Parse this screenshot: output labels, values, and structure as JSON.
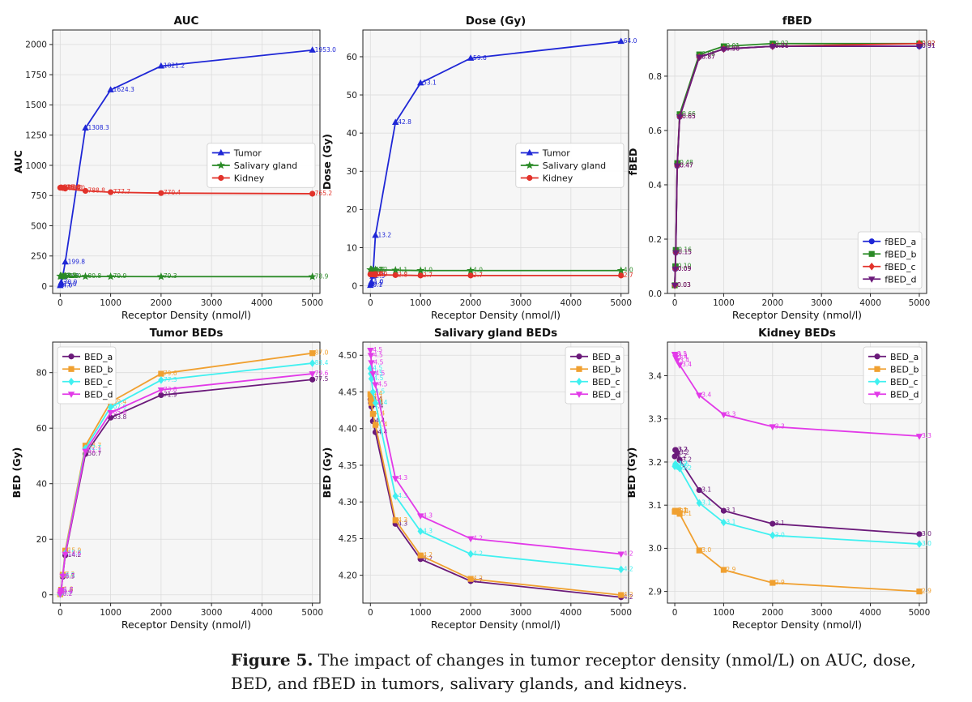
{
  "caption": {
    "label": "Figure 5.",
    "text": "The impact of changes in tumor receptor density (nmol/L) on AUC, dose, BED, and fBED in tumors, salivary glands, and kidneys."
  },
  "chart_data": [
    {
      "type": "line",
      "title": "AUC",
      "xlabel": "Receptor Density (nmol/l)",
      "ylabel": "AUC",
      "x": [
        0,
        10,
        20,
        50,
        100,
        500,
        1000,
        2000,
        5000
      ],
      "xlim": [
        -150,
        5150
      ],
      "ylim": [
        -60,
        2120
      ],
      "xticks": [
        0,
        1000,
        2000,
        3000,
        4000,
        5000
      ],
      "yticks": [
        0,
        250,
        500,
        750,
        1000,
        1250,
        1500,
        1750,
        2000
      ],
      "legend": "center-right",
      "series": [
        {
          "name": "Tumor",
          "color": "#1f27d6",
          "marker": "triangle-up",
          "values": [
            4.0,
            15.0,
            30.0,
            80.0,
            199.8,
            1308.3,
            1624.3,
            1821.2,
            1953.0
          ],
          "labels": [
            "4.0",
            "15.0",
            "30.0",
            "80.0",
            "199.8",
            "1308.3",
            "1624.3",
            "1821.2",
            "1953.0"
          ]
        },
        {
          "name": "Salivary gland",
          "color": "#2a8a26",
          "marker": "star",
          "values": [
            83.5,
            83.2,
            83.0,
            82.5,
            82.0,
            80.8,
            79.9,
            79.3,
            78.9
          ],
          "labels": [
            "83.5",
            "83.2",
            "83.0",
            "82.5",
            "82.0",
            "80.8",
            "79.9",
            "79.3",
            "78.9"
          ]
        },
        {
          "name": "Kidney",
          "color": "#e2322a",
          "marker": "circle",
          "values": [
            815.0,
            816.0,
            817.0,
            813.0,
            808.0,
            788.8,
            777.7,
            770.4,
            765.2
          ],
          "labels": [
            "815.0",
            "816.0",
            "817.0",
            "813.0",
            "808.0",
            "788.8",
            "777.7",
            "770.4",
            "765.2"
          ]
        }
      ]
    },
    {
      "type": "line",
      "title": "Dose (Gy)",
      "xlabel": "Receptor Density (nmol/l)",
      "ylabel": "Dose (Gy)",
      "x": [
        0,
        10,
        20,
        50,
        100,
        500,
        1000,
        2000,
        5000
      ],
      "xlim": [
        -150,
        5150
      ],
      "ylim": [
        -2,
        67
      ],
      "xticks": [
        0,
        1000,
        2000,
        3000,
        4000,
        5000
      ],
      "yticks": [
        0,
        10,
        20,
        30,
        40,
        50,
        60
      ],
      "legend": "center-right",
      "series": [
        {
          "name": "Tumor",
          "color": "#1f27d6",
          "marker": "triangle-up",
          "values": [
            0.1,
            0.5,
            1.0,
            2.5,
            13.2,
            42.8,
            53.1,
            59.6,
            64.0
          ],
          "labels": [
            "0.1",
            "0.5",
            "1.0",
            "2.5",
            "13.2",
            "42.8",
            "53.1",
            "59.6",
            "64.0"
          ]
        },
        {
          "name": "Salivary gland",
          "color": "#2a8a26",
          "marker": "star",
          "values": [
            4.2,
            4.2,
            4.2,
            4.2,
            4.2,
            4.1,
            4.0,
            4.0,
            4.0
          ],
          "labels": [
            "4.2",
            "4.2",
            "4.2",
            "4.2",
            "4.2",
            "4.1",
            "4.0",
            "4.0",
            "4.0"
          ]
        },
        {
          "name": "Kidney",
          "color": "#e2322a",
          "marker": "circle",
          "values": [
            3.0,
            3.0,
            3.0,
            3.0,
            2.9,
            2.8,
            2.7,
            2.7,
            2.7
          ],
          "labels": [
            "3.0",
            "3.0",
            "3.0",
            "3.0",
            "2.9",
            "2.8",
            "2.7",
            "2.7",
            "2.7"
          ]
        }
      ]
    },
    {
      "type": "line",
      "title": "fBED",
      "xlabel": "Receptor Density (nmol/l)",
      "ylabel": "fBED",
      "x": [
        0,
        10,
        20,
        50,
        100,
        500,
        1000,
        2000,
        5000
      ],
      "xlim": [
        -150,
        5150
      ],
      "ylim": [
        0,
        0.97
      ],
      "xticks": [
        0,
        1000,
        2000,
        3000,
        4000,
        5000
      ],
      "yticks": [
        0.0,
        0.2,
        0.4,
        0.6,
        0.8
      ],
      "legend": "bottom-right",
      "series": [
        {
          "name": "fBED_a",
          "color": "#1f27d6",
          "marker": "circle",
          "values": [
            0.03,
            0.09,
            0.15,
            0.47,
            0.65,
            0.87,
            0.9,
            0.91,
            0.91
          ],
          "labels": [
            "0.03",
            "0.09",
            "0.15",
            "0.47",
            "0.65",
            "0.87",
            "0.90",
            "0.91",
            "0.91"
          ]
        },
        {
          "name": "fBED_b",
          "color": "#2a8a26",
          "marker": "square",
          "values": [
            0.03,
            0.1,
            0.16,
            0.48,
            0.66,
            0.88,
            0.91,
            0.92,
            0.92
          ],
          "labels": [
            "0.03",
            "0.10",
            "0.16",
            "0.48",
            "0.66",
            "0.88",
            "0.91",
            "0.92",
            "0.92"
          ]
        },
        {
          "name": "fBED_c",
          "color": "#e2322a",
          "marker": "diamond",
          "values": [
            0.03,
            0.09,
            0.15,
            0.47,
            0.65,
            0.87,
            0.9,
            0.91,
            0.92
          ],
          "labels": [
            "0.03",
            "0.09",
            "0.15",
            "0.47",
            "0.65",
            "0.87",
            "0.90",
            "0.91",
            "0.92"
          ]
        },
        {
          "name": "fBED_d",
          "color": "#6b1a7a",
          "marker": "triangle-down",
          "values": [
            0.03,
            0.09,
            0.15,
            0.47,
            0.65,
            0.87,
            0.9,
            0.91,
            0.91
          ],
          "labels": [
            "0.03",
            "0.09",
            "0.15",
            "0.47",
            "0.65",
            "0.87",
            "0.90",
            "0.91",
            "0.91"
          ]
        }
      ]
    },
    {
      "type": "line",
      "title": "Tumor BEDs",
      "xlabel": "Receptor Density (nmol/l)",
      "ylabel": "BED (Gy)",
      "x": [
        0,
        10,
        20,
        50,
        100,
        500,
        1000,
        2000,
        5000
      ],
      "xlim": [
        -150,
        5150
      ],
      "ylim": [
        -3,
        91
      ],
      "xticks": [
        0,
        1000,
        2000,
        3000,
        4000,
        5000
      ],
      "yticks": [
        0,
        20,
        40,
        60,
        80
      ],
      "legend": "top-left",
      "series": [
        {
          "name": "BED_a",
          "color": "#6b1a7a",
          "marker": "circle",
          "values": [
            0.2,
            0.9,
            1.6,
            6.5,
            14.2,
            50.7,
            63.8,
            71.9,
            77.5
          ],
          "labels": [
            "0.2",
            "0.9",
            "1.6",
            "6.5",
            "14.2",
            "50.7",
            "63.8",
            "71.9",
            "77.5"
          ]
        },
        {
          "name": "BED_b",
          "color": "#f0a030",
          "marker": "square",
          "values": [
            0.2,
            1.0,
            1.8,
            7.2,
            15.9,
            53.7,
            69.4,
            79.6,
            87.0
          ],
          "labels": [
            "0.2",
            "1.0",
            "1.8",
            "7.2",
            "15.9",
            "53.7",
            "69.4",
            "79.6",
            "87.0"
          ]
        },
        {
          "name": "BED_c",
          "color": "#40f0f0",
          "marker": "diamond",
          "values": [
            0.2,
            1.0,
            1.7,
            6.9,
            15.0,
            52.7,
            67.6,
            77.3,
            83.4
          ],
          "labels": [
            "0.2",
            "1.0",
            "1.7",
            "6.9",
            "15.0",
            "52.7",
            "67.6",
            "77.3",
            "83.4"
          ]
        },
        {
          "name": "BED_d",
          "color": "#e23ae8",
          "marker": "triangle-down",
          "values": [
            0.2,
            0.9,
            1.7,
            6.7,
            14.6,
            51.7,
            65.6,
            73.8,
            79.6
          ],
          "labels": [
            "0.2",
            "0.9",
            "1.7",
            "6.7",
            "14.6",
            "51.7",
            "65.6",
            "73.8",
            "79.6"
          ]
        }
      ]
    },
    {
      "type": "line",
      "title": "Salivary gland BEDs",
      "xlabel": "Receptor Density (nmol/l)",
      "ylabel": "BED (Gy)",
      "x": [
        0,
        10,
        20,
        50,
        100,
        500,
        1000,
        2000,
        5000
      ],
      "xlim": [
        -150,
        5150
      ],
      "ylim": [
        4.162,
        4.518
      ],
      "xticks": [
        0,
        1000,
        2000,
        3000,
        4000,
        5000
      ],
      "yticks": [
        4.2,
        4.25,
        4.3,
        4.35,
        4.4,
        4.45,
        4.5
      ],
      "legend": "top-right",
      "series": [
        {
          "name": "BED_a",
          "color": "#6b1a7a",
          "marker": "circle",
          "values": [
            4.44,
            4.435,
            4.43,
            4.41,
            4.395,
            4.27,
            4.222,
            4.192,
            4.17
          ],
          "labels": [
            "4.4",
            "4.4",
            "4.4",
            "4.4",
            "4.4",
            "4.3",
            "4.2",
            "4.2",
            "4.2"
          ]
        },
        {
          "name": "BED_b",
          "color": "#f0a030",
          "marker": "square",
          "values": [
            4.447,
            4.44,
            4.435,
            4.42,
            4.405,
            4.275,
            4.227,
            4.195,
            4.173
          ],
          "labels": [
            "4.4",
            "4.4",
            "4.4",
            "4.4",
            "4.4",
            "4.3",
            "4.2",
            "4.2",
            "4.2"
          ]
        },
        {
          "name": "BED_c",
          "color": "#40f0f0",
          "marker": "diamond",
          "values": [
            4.482,
            4.475,
            4.468,
            4.45,
            4.435,
            4.308,
            4.26,
            4.229,
            4.208
          ],
          "labels": [
            "4.5",
            "4.5",
            "4.5",
            "4.5",
            "4.4",
            "4.3",
            "4.3",
            "4.2",
            "4.2"
          ]
        },
        {
          "name": "BED_d",
          "color": "#e23ae8",
          "marker": "triangle-down",
          "values": [
            4.507,
            4.5,
            4.49,
            4.475,
            4.46,
            4.332,
            4.281,
            4.25,
            4.229
          ],
          "labels": [
            "4.5",
            "4.5",
            "4.5",
            "4.5",
            "4.5",
            "4.3",
            "4.3",
            "4.2",
            "4.2"
          ]
        }
      ]
    },
    {
      "type": "line",
      "title": "Kidney BEDs",
      "xlabel": "Receptor Density (nmol/l)",
      "ylabel": "BED (Gy)",
      "x": [
        0,
        10,
        20,
        50,
        100,
        500,
        1000,
        2000,
        5000
      ],
      "xlim": [
        -150,
        5150
      ],
      "ylim": [
        2.873,
        3.478
      ],
      "xticks": [
        0,
        1000,
        2000,
        3000,
        4000,
        5000
      ],
      "yticks": [
        2.9,
        3.0,
        3.1,
        3.2,
        3.3,
        3.4
      ],
      "legend": "top-right",
      "series": [
        {
          "name": "BED_a",
          "color": "#6b1a7a",
          "marker": "circle",
          "values": [
            3.213,
            3.228,
            3.228,
            3.222,
            3.205,
            3.135,
            3.087,
            3.057,
            3.033
          ],
          "labels": [
            "3.2",
            "3.2",
            "3.2",
            "3.2",
            "3.2",
            "3.1",
            "3.1",
            "3.1",
            "3.0"
          ]
        },
        {
          "name": "BED_b",
          "color": "#f0a030",
          "marker": "square",
          "values": [
            3.085,
            3.087,
            3.087,
            3.085,
            3.08,
            2.995,
            2.95,
            2.92,
            2.9
          ],
          "labels": [
            "3.1",
            "3.1",
            "3.1",
            "3.1",
            "3.1",
            "3.0",
            "2.9",
            "2.9",
            "2.9"
          ]
        },
        {
          "name": "BED_c",
          "color": "#40f0f0",
          "marker": "diamond",
          "values": [
            3.19,
            3.195,
            3.195,
            3.19,
            3.185,
            3.105,
            3.06,
            3.03,
            3.01
          ],
          "labels": [
            "3.2",
            "3.2",
            "3.2",
            "3.2",
            "3.2",
            "3.1",
            "3.1",
            "3.0",
            "3.0"
          ]
        },
        {
          "name": "BED_d",
          "color": "#e23ae8",
          "marker": "triangle-down",
          "values": [
            3.45,
            3.447,
            3.442,
            3.435,
            3.425,
            3.355,
            3.31,
            3.282,
            3.26
          ],
          "labels": [
            "3.5",
            "3.4",
            "3.4",
            "3.4",
            "3.4",
            "3.4",
            "3.3",
            "3.3",
            "3.3"
          ]
        }
      ]
    }
  ]
}
